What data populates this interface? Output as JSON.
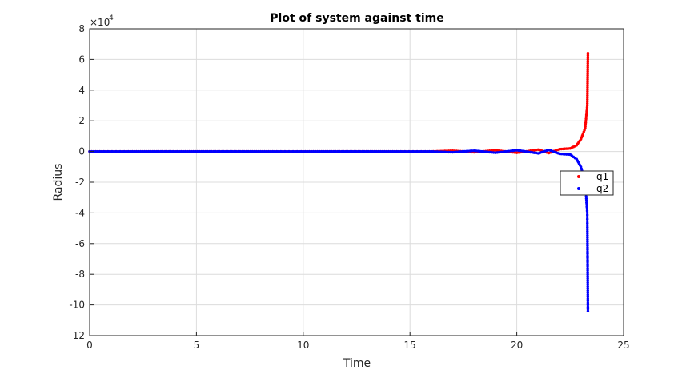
{
  "chart_data": {
    "type": "scatter",
    "title": "Plot of system against time",
    "xlabel": "Time",
    "ylabel": "Radius",
    "y_exponent_label": "×10",
    "y_exponent_power": "4",
    "xlim": [
      0,
      25
    ],
    "ylim": [
      -12,
      8
    ],
    "x_ticks": [
      "0",
      "5",
      "10",
      "15",
      "20",
      "25"
    ],
    "y_ticks": [
      "-12",
      "-10",
      "-8",
      "-6",
      "-4",
      "-2",
      "0",
      "2",
      "4",
      "6",
      "8"
    ],
    "grid": true,
    "legend_position": "right",
    "series": [
      {
        "name": "q1",
        "color": "#ff0000",
        "points": [
          [
            0,
            0
          ],
          [
            2,
            0
          ],
          [
            4,
            0
          ],
          [
            6,
            0
          ],
          [
            8,
            0
          ],
          [
            10,
            0
          ],
          [
            12,
            0
          ],
          [
            14,
            0
          ],
          [
            16,
            0
          ],
          [
            17,
            0.05
          ],
          [
            18,
            -0.05
          ],
          [
            19,
            0.08
          ],
          [
            20,
            -0.08
          ],
          [
            21,
            0.12
          ],
          [
            21.5,
            -0.1
          ],
          [
            22,
            0.15
          ],
          [
            22.5,
            0.2
          ],
          [
            22.8,
            0.4
          ],
          [
            23,
            0.8
          ],
          [
            23.2,
            1.5
          ],
          [
            23.3,
            3
          ],
          [
            23.33,
            6.4
          ]
        ]
      },
      {
        "name": "q2",
        "color": "#0000ff",
        "points": [
          [
            0,
            0
          ],
          [
            2,
            0
          ],
          [
            4,
            0
          ],
          [
            6,
            0
          ],
          [
            8,
            0
          ],
          [
            10,
            0
          ],
          [
            12,
            0
          ],
          [
            14,
            0
          ],
          [
            16,
            0
          ],
          [
            17,
            -0.05
          ],
          [
            18,
            0.05
          ],
          [
            19,
            -0.08
          ],
          [
            20,
            0.08
          ],
          [
            21,
            -0.12
          ],
          [
            21.5,
            0.1
          ],
          [
            22,
            -0.15
          ],
          [
            22.5,
            -0.2
          ],
          [
            22.8,
            -0.5
          ],
          [
            23,
            -1.0
          ],
          [
            23.2,
            -2.0
          ],
          [
            23.3,
            -4
          ],
          [
            23.33,
            -10.4
          ]
        ]
      }
    ]
  }
}
